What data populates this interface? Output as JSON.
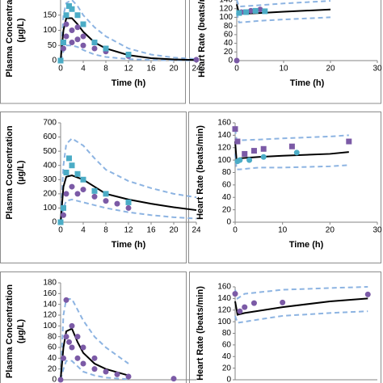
{
  "chart_data": [
    {
      "type": "scatter",
      "xlim": [
        0,
        24
      ],
      "xticks": [
        0,
        4,
        8,
        12,
        16,
        20,
        24
      ],
      "ylim": [
        0,
        200
      ],
      "yticks": [
        0,
        50,
        100,
        150
      ],
      "xlabel": "Time (h)",
      "ylabel": [
        "Plasma Concentration",
        "(µg/L)"
      ],
      "series": [
        {
          "style": "dashed",
          "color": "#8db4e2",
          "x": [
            0,
            0.5,
            1,
            2,
            3,
            4,
            6,
            8,
            12,
            16,
            20,
            24
          ],
          "values": [
            0,
            150,
            190,
            200,
            180,
            150,
            110,
            80,
            40,
            20,
            10,
            5
          ]
        },
        {
          "style": "dashed",
          "color": "#8db4e2",
          "x": [
            0,
            0.5,
            1,
            2,
            3,
            4,
            6,
            8,
            12,
            16,
            20,
            24
          ],
          "values": [
            0,
            30,
            50,
            50,
            45,
            35,
            20,
            12,
            5,
            2,
            1,
            0
          ]
        },
        {
          "style": "line",
          "color": "#000000",
          "x": [
            0,
            0.5,
            1,
            2,
            3,
            4,
            6,
            8,
            12,
            16,
            20,
            24
          ],
          "values": [
            0,
            100,
            140,
            140,
            120,
            95,
            60,
            40,
            18,
            8,
            4,
            2
          ]
        },
        {
          "style": "circle",
          "color": "#7b5aa6",
          "x": [
            0,
            0.5,
            1,
            1,
            2,
            2,
            3,
            3,
            4,
            4,
            6,
            6,
            8,
            12,
            24
          ],
          "values": [
            0,
            40,
            80,
            120,
            60,
            100,
            70,
            110,
            50,
            80,
            40,
            60,
            30,
            15,
            3
          ]
        },
        {
          "style": "square",
          "color": "#4bacc6",
          "x": [
            0,
            0.5,
            1,
            1.5,
            2,
            3,
            4,
            6,
            8,
            12
          ],
          "values": [
            0,
            60,
            150,
            180,
            170,
            150,
            120,
            60,
            40,
            20
          ]
        }
      ]
    },
    {
      "type": "scatter",
      "xlim": [
        0,
        30
      ],
      "xticks": [
        0,
        10,
        20,
        30
      ],
      "ylim": [
        0,
        140
      ],
      "yticks": [
        0,
        20,
        40,
        60,
        80,
        100,
        120,
        140
      ],
      "xlabel": "Time (h)",
      "ylabel": [
        "Heart Rate (beats/min)"
      ],
      "series": [
        {
          "style": "dashed",
          "color": "#8db4e2",
          "x": [
            0,
            0.5,
            5,
            10,
            20
          ],
          "values": [
            140,
            125,
            128,
            132,
            138
          ]
        },
        {
          "style": "dashed",
          "color": "#8db4e2",
          "x": [
            0,
            0.5,
            5,
            10,
            20
          ],
          "values": [
            110,
            88,
            92,
            95,
            100
          ]
        },
        {
          "style": "line",
          "color": "#000000",
          "x": [
            0,
            0.5,
            5,
            10,
            20
          ],
          "values": [
            130,
            108,
            110,
            113,
            118
          ]
        },
        {
          "style": "circle",
          "color": "#7b5aa6",
          "x": [
            0,
            1,
            3,
            5
          ],
          "values": [
            0,
            112,
            115,
            118
          ]
        },
        {
          "style": "square",
          "color": "#4bacc6",
          "x": [
            0.5,
            2,
            4,
            6
          ],
          "values": [
            110,
            112,
            115,
            114
          ]
        }
      ]
    },
    {
      "type": "scatter",
      "xlim": [
        0,
        24
      ],
      "xticks": [
        0,
        4,
        8,
        12,
        16,
        20,
        24
      ],
      "ylim": [
        0,
        700
      ],
      "yticks": [
        0,
        100,
        200,
        300,
        400,
        500,
        600,
        700
      ],
      "xlabel": "Time (h)",
      "ylabel": [
        "Plasma Concentration",
        "(µg/L)"
      ],
      "series": [
        {
          "style": "dashed",
          "color": "#8db4e2",
          "x": [
            0,
            0.5,
            1,
            2,
            4,
            6,
            8,
            12,
            16,
            20,
            24
          ],
          "values": [
            0,
            400,
            550,
            590,
            540,
            450,
            370,
            290,
            240,
            200,
            175
          ]
        },
        {
          "style": "dashed",
          "color": "#8db4e2",
          "x": [
            0,
            0.5,
            1,
            2,
            4,
            6,
            8,
            12,
            16,
            20,
            24
          ],
          "values": [
            0,
            100,
            150,
            160,
            140,
            120,
            100,
            70,
            50,
            35,
            25
          ]
        },
        {
          "style": "line",
          "color": "#000000",
          "x": [
            0,
            0.5,
            1,
            2,
            4,
            6,
            8,
            12,
            16,
            20,
            24
          ],
          "values": [
            0,
            250,
            320,
            330,
            300,
            250,
            200,
            160,
            130,
            105,
            85
          ]
        },
        {
          "style": "circle",
          "color": "#7b5aa6",
          "x": [
            0,
            0.5,
            1,
            2,
            3,
            4,
            6,
            8,
            10,
            12
          ],
          "values": [
            0,
            50,
            200,
            250,
            200,
            230,
            180,
            150,
            130,
            100
          ]
        },
        {
          "style": "square",
          "color": "#4bacc6",
          "x": [
            0,
            0.5,
            1,
            1.5,
            2,
            3,
            4,
            6,
            8,
            12
          ],
          "values": [
            0,
            100,
            350,
            450,
            400,
            340,
            300,
            220,
            200,
            140
          ]
        }
      ]
    },
    {
      "type": "scatter",
      "xlim": [
        0,
        30
      ],
      "xticks": [
        0,
        10,
        20,
        30
      ],
      "ylim": [
        0,
        160
      ],
      "yticks": [
        0,
        20,
        40,
        60,
        80,
        100,
        120,
        140,
        160
      ],
      "xlabel": "Time (h)",
      "ylabel": [
        "Heart Rate (beats/min)"
      ],
      "series": [
        {
          "style": "dashed",
          "color": "#8db4e2",
          "x": [
            0,
            0.3,
            1,
            5,
            10,
            20,
            24
          ],
          "values": [
            150,
            133,
            132,
            133,
            135,
            138,
            140
          ]
        },
        {
          "style": "dashed",
          "color": "#8db4e2",
          "x": [
            0,
            0.3,
            1,
            5,
            10,
            20,
            24
          ],
          "values": [
            110,
            85,
            85,
            88,
            88,
            90,
            92
          ]
        },
        {
          "style": "line",
          "color": "#000000",
          "x": [
            0,
            0.3,
            1,
            5,
            10,
            20,
            24
          ],
          "values": [
            130,
            100,
            103,
            105,
            107,
            110,
            113
          ]
        },
        {
          "style": "square",
          "color": "#7b5aa6",
          "x": [
            0,
            0.5,
            2,
            4,
            6,
            12,
            24
          ],
          "values": [
            150,
            130,
            110,
            115,
            118,
            122,
            130
          ]
        },
        {
          "style": "circle",
          "color": "#4bacc6",
          "x": [
            0.5,
            1,
            3,
            6,
            13
          ],
          "values": [
            98,
            100,
            100,
            105,
            112
          ]
        }
      ]
    },
    {
      "type": "scatter",
      "xlim": [
        0,
        24
      ],
      "ylim": [
        0,
        180
      ],
      "yticks": [
        0,
        20,
        40,
        60,
        80,
        100,
        120,
        140,
        160,
        180
      ],
      "ylabel": [
        "Plasma Concentration",
        "(µg/L)"
      ],
      "series": [
        {
          "style": "dashed",
          "color": "#8db4e2",
          "x": [
            0,
            0.5,
            1,
            2,
            3,
            4,
            6,
            8,
            12
          ],
          "values": [
            0,
            120,
            150,
            150,
            130,
            110,
            80,
            60,
            30
          ]
        },
        {
          "style": "dashed",
          "color": "#8db4e2",
          "x": [
            0,
            0.5,
            1,
            2,
            3,
            4,
            6,
            8,
            12
          ],
          "values": [
            0,
            20,
            35,
            35,
            25,
            15,
            8,
            4,
            1
          ]
        },
        {
          "style": "line",
          "color": "#000000",
          "x": [
            0,
            0.5,
            1,
            2,
            3,
            4,
            6,
            8,
            12
          ],
          "values": [
            0,
            60,
            90,
            95,
            70,
            50,
            30,
            20,
            8
          ]
        },
        {
          "style": "circle",
          "color": "#7b5aa6",
          "x": [
            0,
            0.5,
            1,
            1,
            1.5,
            2,
            2,
            3,
            3,
            4,
            4,
            6,
            6,
            8,
            10,
            12,
            20
          ],
          "values": [
            0,
            40,
            80,
            148,
            70,
            100,
            60,
            80,
            40,
            60,
            30,
            40,
            20,
            15,
            10,
            6,
            2
          ]
        }
      ]
    },
    {
      "type": "scatter",
      "xlim": [
        0,
        30
      ],
      "ylim": [
        0,
        160
      ],
      "yticks": [
        0,
        20,
        40,
        60,
        80,
        100,
        120,
        140,
        160
      ],
      "ylabel": [
        "Heart Rate (beats/min)"
      ],
      "series": [
        {
          "style": "dashed",
          "color": "#8db4e2",
          "x": [
            0,
            0.5,
            2,
            10,
            20,
            28
          ],
          "values": [
            155,
            140,
            148,
            155,
            158,
            160
          ]
        },
        {
          "style": "dashed",
          "color": "#8db4e2",
          "x": [
            0,
            0.5,
            2,
            10,
            20,
            28
          ],
          "values": [
            110,
            98,
            100,
            110,
            115,
            118
          ]
        },
        {
          "style": "line",
          "color": "#000000",
          "x": [
            0,
            0.5,
            2,
            10,
            20,
            28
          ],
          "values": [
            135,
            112,
            115,
            125,
            135,
            140
          ]
        },
        {
          "style": "circle",
          "color": "#7b5aa6",
          "x": [
            0,
            1,
            2,
            4,
            10,
            28
          ],
          "values": [
            148,
            118,
            125,
            132,
            133,
            147
          ]
        }
      ]
    }
  ]
}
